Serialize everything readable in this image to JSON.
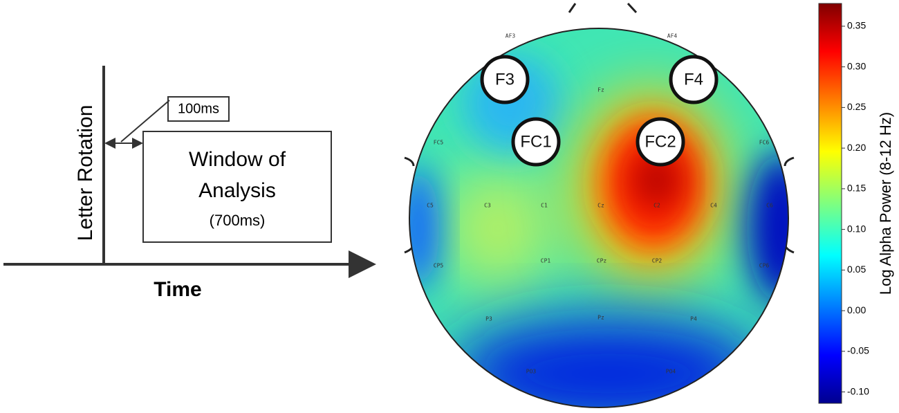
{
  "timeline": {
    "axis_label": "Letter Rotation",
    "offset_label": "100ms",
    "window_title": [
      "Window of",
      "Analysis"
    ],
    "window_duration": "(700ms)",
    "x_label": "Time"
  },
  "topomap": {
    "electrodes": [
      "AF3",
      "AF4",
      "Fz",
      "FC5",
      "FC6",
      "C5",
      "C3",
      "C1",
      "Cz",
      "C2",
      "C4",
      "C6",
      "CP5",
      "CP1",
      "CPz",
      "CP2",
      "CP6",
      "P3",
      "Pz",
      "P4",
      "PO3",
      "PO4"
    ],
    "highlighted": [
      "F3",
      "F4",
      "FC1",
      "FC2"
    ]
  },
  "colorbar": {
    "label": "Log Alpha Power (8-12 Hz)",
    "lim": [
      -0.114,
      0.378
    ],
    "ticks": [
      {
        "value": 0.35,
        "label": "0.35"
      },
      {
        "value": 0.3,
        "label": "0.30"
      },
      {
        "value": 0.25,
        "label": "0.25"
      },
      {
        "value": 0.2,
        "label": "0.20"
      },
      {
        "value": 0.15,
        "label": "0.15"
      },
      {
        "value": 0.1,
        "label": "0.10"
      },
      {
        "value": 0.05,
        "label": "0.05"
      },
      {
        "value": 0,
        "label": "0.00"
      },
      {
        "value": -0.05,
        "label": "-0.05"
      },
      {
        "value": -0.1,
        "label": "-0.10"
      }
    ]
  }
}
